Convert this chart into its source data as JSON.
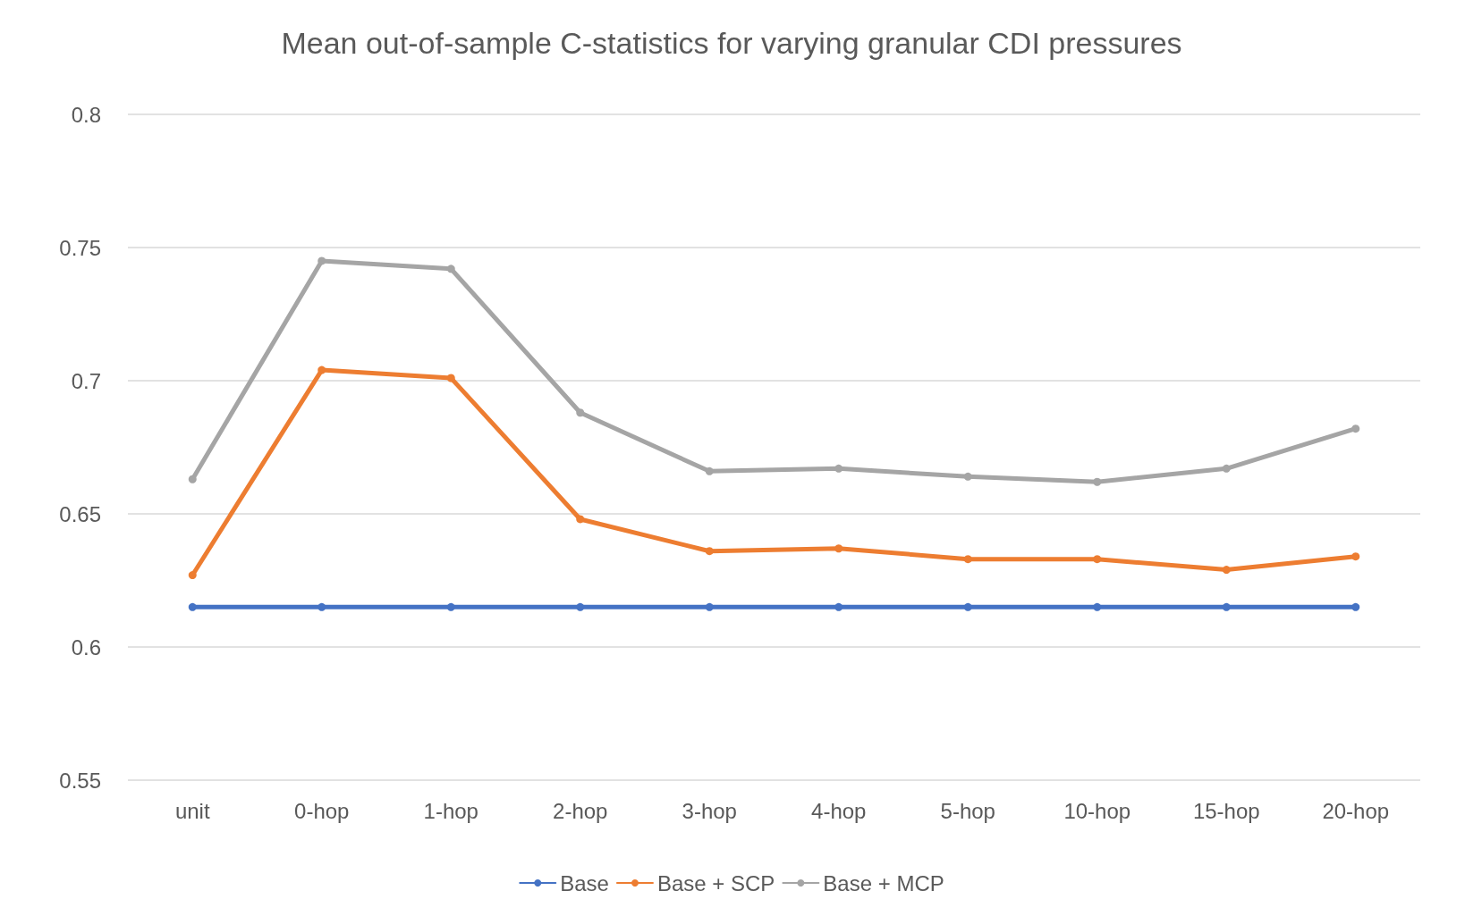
{
  "chart_data": {
    "type": "line",
    "title": "Mean out-of-sample C-statistics for varying granular CDI pressures",
    "categories": [
      "unit",
      "0-hop",
      "1-hop",
      "2-hop",
      "3-hop",
      "4-hop",
      "5-hop",
      "10-hop",
      "15-hop",
      "20-hop"
    ],
    "series": [
      {
        "name": "Base",
        "color": "#4472c4",
        "values": [
          0.615,
          0.615,
          0.615,
          0.615,
          0.615,
          0.615,
          0.615,
          0.615,
          0.615,
          0.615
        ]
      },
      {
        "name": "Base + SCP",
        "color": "#ed7d31",
        "values": [
          0.627,
          0.704,
          0.701,
          0.648,
          0.636,
          0.637,
          0.633,
          0.633,
          0.629,
          0.634
        ]
      },
      {
        "name": "Base + MCP",
        "color": "#a5a5a5",
        "values": [
          0.663,
          0.745,
          0.742,
          0.688,
          0.666,
          0.667,
          0.664,
          0.662,
          0.667,
          0.682
        ]
      }
    ],
    "ylim": [
      0.55,
      0.8
    ],
    "yticks": [
      0.55,
      0.6,
      0.65,
      0.7,
      0.75,
      0.8
    ],
    "grid": "y",
    "legend": "bottom",
    "marker": "circle",
    "line_style": "solid"
  }
}
